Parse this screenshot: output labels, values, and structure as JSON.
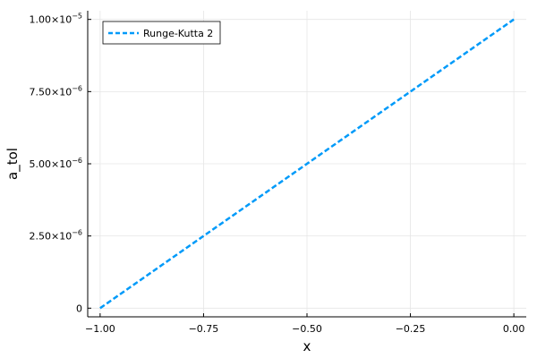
{
  "chart_data": {
    "type": "line",
    "xlabel": "x",
    "ylabel": "a_tol",
    "xlim": [
      -1.03,
      0.03
    ],
    "ylim": [
      -3e-07,
      1.03e-05
    ],
    "x_ticks": [
      -1.0,
      -0.75,
      -0.5,
      -0.25,
      0.0
    ],
    "x_tick_labels": [
      "−1.00",
      "−0.75",
      "−0.50",
      "−0.25",
      "0.00"
    ],
    "y_ticks": [
      0,
      2.5e-06,
      5e-06,
      7.5e-06,
      1e-05
    ],
    "y_tick_labels": [
      {
        "mantissa": "0",
        "exponent": ""
      },
      {
        "mantissa": "2.50×10",
        "exponent": "−6"
      },
      {
        "mantissa": "5.00×10",
        "exponent": "−6"
      },
      {
        "mantissa": "7.50×10",
        "exponent": "−6"
      },
      {
        "mantissa": "1.00×10",
        "exponent": "−5"
      }
    ],
    "grid": true,
    "legend_position": "top-left",
    "series": [
      {
        "name": "Runge-Kutta 2",
        "color": "#009AF9",
        "line_style": "dashed",
        "x": [
          -1.0,
          0.0
        ],
        "y": [
          0.0,
          1e-05
        ]
      }
    ]
  }
}
